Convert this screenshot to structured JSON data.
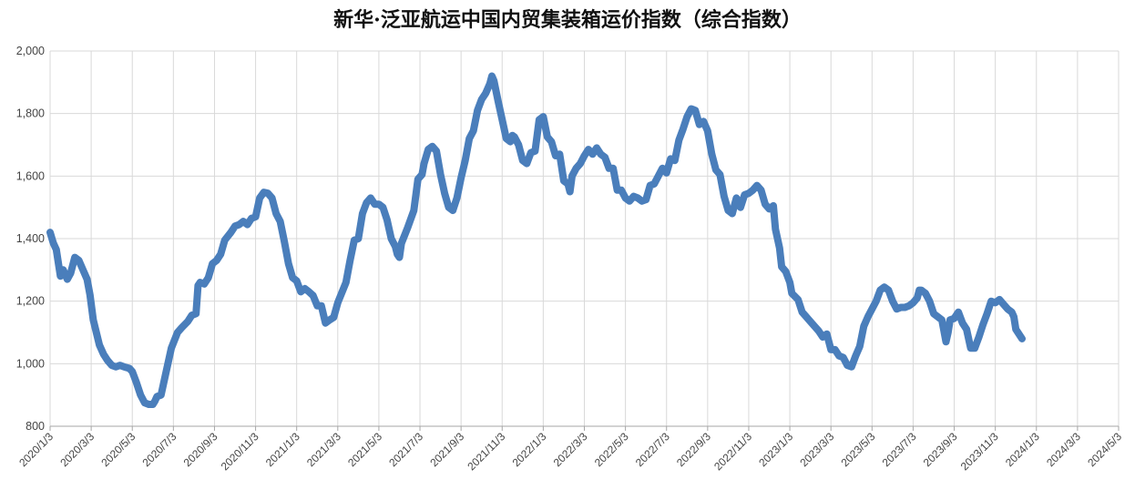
{
  "chart_data": {
    "type": "line",
    "title": "新华·泛亚航运中国内贸集装箱运价指数（综合指数）",
    "xlabel": "",
    "ylabel": "",
    "ylim": [
      800,
      2000
    ],
    "yticks": [
      "800",
      "1,000",
      "1,200",
      "1,400",
      "1,600",
      "1,800",
      "2,000"
    ],
    "xticks": [
      "2020/1/3",
      "2020/3/3",
      "2020/5/3",
      "2020/7/3",
      "2020/9/3",
      "2020/11/3",
      "2021/1/3",
      "2021/3/3",
      "2021/5/3",
      "2021/7/3",
      "2021/9/3",
      "2021/11/3",
      "2022/1/3",
      "2022/3/3",
      "2022/5/3",
      "2022/7/3",
      "2022/9/3",
      "2022/11/3",
      "2023/1/3",
      "2023/3/3",
      "2023/5/3",
      "2023/7/3",
      "2023/9/3",
      "2023/11/3",
      "2024/1/3",
      "2024/3/3",
      "2024/5/3"
    ],
    "grid": true,
    "legend": "none",
    "series": [
      {
        "color": "#4a7ebb",
        "points": [
          [
            0,
            1420
          ],
          [
            0.08,
            1385
          ],
          [
            0.15,
            1365
          ],
          [
            0.25,
            1280
          ],
          [
            0.32,
            1300
          ],
          [
            0.42,
            1270
          ],
          [
            0.5,
            1290
          ],
          [
            0.6,
            1340
          ],
          [
            0.7,
            1330
          ],
          [
            0.8,
            1300
          ],
          [
            0.9,
            1270
          ],
          [
            0.97,
            1220
          ],
          [
            1.05,
            1140
          ],
          [
            1.2,
            1060
          ],
          [
            1.3,
            1030
          ],
          [
            1.4,
            1010
          ],
          [
            1.5,
            995
          ],
          [
            1.6,
            990
          ],
          [
            1.7,
            995
          ],
          [
            1.8,
            990
          ],
          [
            1.93,
            985
          ],
          [
            2.0,
            975
          ],
          [
            2.1,
            940
          ],
          [
            2.2,
            900
          ],
          [
            2.3,
            875
          ],
          [
            2.4,
            870
          ],
          [
            2.5,
            870
          ],
          [
            2.55,
            880
          ],
          [
            2.6,
            895
          ],
          [
            2.7,
            900
          ],
          [
            2.8,
            960
          ],
          [
            2.95,
            1050
          ],
          [
            3.1,
            1100
          ],
          [
            3.2,
            1115
          ],
          [
            3.35,
            1135
          ],
          [
            3.45,
            1155
          ],
          [
            3.55,
            1160
          ],
          [
            3.6,
            1250
          ],
          [
            3.65,
            1260
          ],
          [
            3.75,
            1255
          ],
          [
            3.85,
            1275
          ],
          [
            3.95,
            1320
          ],
          [
            4.05,
            1330
          ],
          [
            4.15,
            1350
          ],
          [
            4.25,
            1395
          ],
          [
            4.4,
            1420
          ],
          [
            4.5,
            1440
          ],
          [
            4.6,
            1445
          ],
          [
            4.7,
            1455
          ],
          [
            4.8,
            1445
          ],
          [
            4.9,
            1465
          ],
          [
            5.0,
            1470
          ],
          [
            5.1,
            1530
          ],
          [
            5.2,
            1548
          ],
          [
            5.3,
            1545
          ],
          [
            5.4,
            1530
          ],
          [
            5.5,
            1480
          ],
          [
            5.6,
            1455
          ],
          [
            5.7,
            1390
          ],
          [
            5.8,
            1320
          ],
          [
            5.9,
            1275
          ],
          [
            6.0,
            1265
          ],
          [
            6.1,
            1230
          ],
          [
            6.2,
            1240
          ],
          [
            6.3,
            1230
          ],
          [
            6.4,
            1218
          ],
          [
            6.5,
            1185
          ],
          [
            6.6,
            1185
          ],
          [
            6.7,
            1130
          ],
          [
            6.8,
            1140
          ],
          [
            6.9,
            1148
          ],
          [
            7.0,
            1195
          ],
          [
            7.2,
            1260
          ],
          [
            7.3,
            1330
          ],
          [
            7.4,
            1395
          ],
          [
            7.5,
            1400
          ],
          [
            7.6,
            1480
          ],
          [
            7.7,
            1515
          ],
          [
            7.8,
            1530
          ],
          [
            7.9,
            1510
          ],
          [
            8.0,
            1510
          ],
          [
            8.1,
            1500
          ],
          [
            8.2,
            1460
          ],
          [
            8.3,
            1400
          ],
          [
            8.4,
            1375
          ],
          [
            8.45,
            1350
          ],
          [
            8.5,
            1340
          ],
          [
            8.55,
            1385
          ],
          [
            8.7,
            1435
          ],
          [
            8.85,
            1490
          ],
          [
            8.95,
            1590
          ],
          [
            9.05,
            1605
          ],
          [
            9.1,
            1640
          ],
          [
            9.2,
            1685
          ],
          [
            9.3,
            1695
          ],
          [
            9.4,
            1680
          ],
          [
            9.5,
            1605
          ],
          [
            9.6,
            1545
          ],
          [
            9.7,
            1500
          ],
          [
            9.8,
            1490
          ],
          [
            9.9,
            1530
          ],
          [
            10.0,
            1595
          ],
          [
            10.1,
            1650
          ],
          [
            10.2,
            1720
          ],
          [
            10.3,
            1745
          ],
          [
            10.4,
            1810
          ],
          [
            10.5,
            1845
          ],
          [
            10.6,
            1865
          ],
          [
            10.7,
            1895
          ],
          [
            10.75,
            1920
          ],
          [
            10.8,
            1905
          ],
          [
            10.9,
            1840
          ],
          [
            11.0,
            1780
          ],
          [
            11.1,
            1720
          ],
          [
            11.2,
            1710
          ],
          [
            11.25,
            1730
          ],
          [
            11.3,
            1725
          ],
          [
            11.4,
            1700
          ],
          [
            11.5,
            1650
          ],
          [
            11.6,
            1640
          ],
          [
            11.7,
            1675
          ],
          [
            11.8,
            1680
          ],
          [
            11.9,
            1780
          ],
          [
            12.0,
            1790
          ],
          [
            12.1,
            1725
          ],
          [
            12.2,
            1710
          ],
          [
            12.3,
            1665
          ],
          [
            12.4,
            1670
          ],
          [
            12.5,
            1585
          ],
          [
            12.6,
            1575
          ],
          [
            12.65,
            1550
          ],
          [
            12.7,
            1600
          ],
          [
            12.8,
            1625
          ],
          [
            12.9,
            1640
          ],
          [
            13.0,
            1665
          ],
          [
            13.1,
            1685
          ],
          [
            13.2,
            1670
          ],
          [
            13.3,
            1690
          ],
          [
            13.4,
            1670
          ],
          [
            13.5,
            1660
          ],
          [
            13.6,
            1625
          ],
          [
            13.7,
            1625
          ],
          [
            13.8,
            1555
          ],
          [
            13.9,
            1555
          ],
          [
            14.0,
            1530
          ],
          [
            14.1,
            1520
          ],
          [
            14.2,
            1535
          ],
          [
            14.3,
            1530
          ],
          [
            14.4,
            1520
          ],
          [
            14.5,
            1525
          ],
          [
            14.6,
            1570
          ],
          [
            14.7,
            1575
          ],
          [
            14.8,
            1600
          ],
          [
            14.9,
            1625
          ],
          [
            15.0,
            1610
          ],
          [
            15.1,
            1655
          ],
          [
            15.2,
            1650
          ],
          [
            15.3,
            1715
          ],
          [
            15.4,
            1750
          ],
          [
            15.5,
            1790
          ],
          [
            15.6,
            1815
          ],
          [
            15.7,
            1810
          ],
          [
            15.8,
            1765
          ],
          [
            15.9,
            1775
          ],
          [
            16.0,
            1745
          ],
          [
            16.1,
            1670
          ],
          [
            16.2,
            1620
          ],
          [
            16.3,
            1605
          ],
          [
            16.4,
            1535
          ],
          [
            16.5,
            1490
          ],
          [
            16.6,
            1480
          ],
          [
            16.7,
            1530
          ],
          [
            16.8,
            1500
          ],
          [
            16.9,
            1540
          ],
          [
            17.0,
            1545
          ],
          [
            17.1,
            1555
          ],
          [
            17.2,
            1570
          ],
          [
            17.3,
            1555
          ],
          [
            17.4,
            1510
          ],
          [
            17.5,
            1495
          ],
          [
            17.6,
            1505
          ],
          [
            17.65,
            1430
          ],
          [
            17.75,
            1370
          ],
          [
            17.8,
            1310
          ],
          [
            17.9,
            1295
          ],
          [
            18.0,
            1260
          ],
          [
            18.05,
            1225
          ],
          [
            18.2,
            1205
          ],
          [
            18.3,
            1165
          ],
          [
            18.4,
            1150
          ],
          [
            18.5,
            1135
          ],
          [
            18.6,
            1120
          ],
          [
            18.7,
            1105
          ],
          [
            18.8,
            1085
          ],
          [
            18.9,
            1095
          ],
          [
            19.0,
            1045
          ],
          [
            19.1,
            1045
          ],
          [
            19.2,
            1025
          ],
          [
            19.3,
            1020
          ],
          [
            19.4,
            995
          ],
          [
            19.5,
            990
          ],
          [
            19.6,
            1025
          ],
          [
            19.7,
            1055
          ],
          [
            19.8,
            1120
          ],
          [
            19.9,
            1150
          ],
          [
            20.0,
            1175
          ],
          [
            20.1,
            1200
          ],
          [
            20.2,
            1235
          ],
          [
            20.3,
            1245
          ],
          [
            20.4,
            1235
          ],
          [
            20.5,
            1200
          ],
          [
            20.6,
            1175
          ],
          [
            20.7,
            1180
          ],
          [
            20.8,
            1180
          ],
          [
            20.9,
            1185
          ],
          [
            21.0,
            1195
          ],
          [
            21.1,
            1210
          ],
          [
            21.15,
            1235
          ],
          [
            21.2,
            1235
          ],
          [
            21.3,
            1225
          ],
          [
            21.4,
            1200
          ],
          [
            21.5,
            1160
          ],
          [
            21.6,
            1150
          ],
          [
            21.7,
            1140
          ],
          [
            21.8,
            1070
          ],
          [
            21.85,
            1100
          ],
          [
            21.9,
            1140
          ],
          [
            22.0,
            1145
          ],
          [
            22.1,
            1165
          ],
          [
            22.2,
            1130
          ],
          [
            22.3,
            1110
          ],
          [
            22.4,
            1050
          ],
          [
            22.5,
            1050
          ],
          [
            22.6,
            1085
          ],
          [
            22.7,
            1125
          ],
          [
            22.8,
            1160
          ],
          [
            22.9,
            1200
          ],
          [
            23.0,
            1195
          ],
          [
            23.1,
            1205
          ],
          [
            23.2,
            1190
          ],
          [
            23.3,
            1175
          ],
          [
            23.4,
            1165
          ],
          [
            23.45,
            1150
          ],
          [
            23.5,
            1110
          ],
          [
            23.6,
            1090
          ],
          [
            23.65,
            1080
          ]
        ]
      }
    ]
  }
}
